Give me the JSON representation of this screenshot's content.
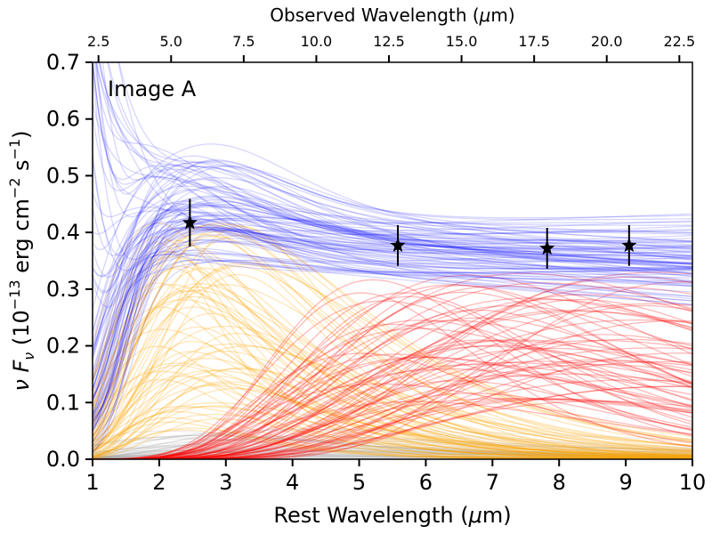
{
  "chart_data": {
    "type": "line",
    "panel_label": "Image A",
    "xlabel_prefix": "Rest Wavelength (",
    "xlabel_mu": "μ",
    "xlabel_suffix": "m)",
    "x2label_prefix": "Observed Wavelength (",
    "x2label_mu": "μ",
    "x2label_suffix": "m)",
    "ylabel_prefix": "ν F",
    "ylabel_sub": "ν",
    "ylabel_mid": " (10",
    "ylabel_exp1": "−13",
    "ylabel_mid2": " erg cm",
    "ylabel_exp2": "−2",
    "ylabel_mid3": " s",
    "ylabel_exp3": "−1",
    "ylabel_end": ")",
    "xlim": [
      1,
      10
    ],
    "ylim": [
      0,
      0.7
    ],
    "x_ticks": [
      "1",
      "2",
      "3",
      "4",
      "5",
      "6",
      "7",
      "8",
      "9",
      "10"
    ],
    "y_ticks": [
      "0.0",
      "0.1",
      "0.2",
      "0.3",
      "0.4",
      "0.5",
      "0.6",
      "0.7"
    ],
    "x2_ticks": [
      "2.5",
      "5.0",
      "7.5",
      "10.0",
      "12.5",
      "15.0",
      "17.5",
      "20.0",
      "22.5"
    ],
    "x2_ratio": 2.295,
    "grid": false,
    "observations": [
      {
        "x": 2.46,
        "y": 0.417,
        "err": 0.042
      },
      {
        "x": 5.58,
        "y": 0.377,
        "err": 0.036
      },
      {
        "x": 7.82,
        "y": 0.372,
        "err": 0.036
      },
      {
        "x": 9.05,
        "y": 0.377,
        "err": 0.036
      }
    ],
    "components": [
      {
        "id": "hot",
        "color": "#ffa500",
        "x_peak_range": [
          1.9,
          3.3
        ],
        "amp_range": [
          0.05,
          0.42
        ],
        "count": 70
      },
      {
        "id": "warm",
        "color": "#ff0000",
        "x_peak_range": [
          5.0,
          10.0
        ],
        "amp_range": [
          0.1,
          0.33
        ],
        "count": 70
      },
      {
        "id": "total",
        "color": "#0000ff",
        "level_range": [
          0.32,
          0.42
        ],
        "count": 90
      },
      {
        "id": "faint",
        "color": "#999999",
        "amp_range": [
          0.0,
          0.09
        ],
        "count": 50
      }
    ],
    "colors": {
      "total": "#0000ff",
      "hot": "#ffa500",
      "warm": "#ff0000",
      "faint": "#999999",
      "marker": "#000000"
    }
  }
}
